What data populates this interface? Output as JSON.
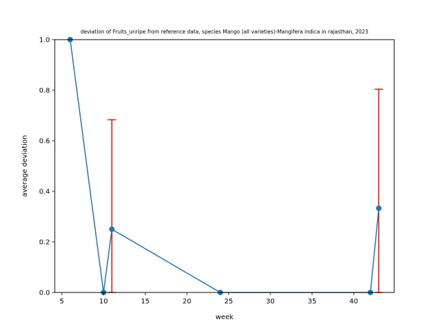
{
  "chart_data": {
    "type": "line",
    "title": "deviation of Fruits_unripe from reference data, species Mango (all varieties)-Mangifera indica in rajasthan, 2023",
    "xlabel": "week",
    "ylabel": "average deviation",
    "xlim": [
      4.15,
      44.85
    ],
    "ylim": [
      0,
      1.0
    ],
    "xticks": [
      5,
      10,
      15,
      20,
      25,
      30,
      35,
      40
    ],
    "yticks": [
      0.0,
      0.2,
      0.4,
      0.6,
      0.8,
      1.0
    ],
    "grid": false,
    "series": [
      {
        "color": "#1f77b4",
        "x": [
          6,
          10,
          11,
          24,
          42,
          43
        ],
        "y": [
          1.0,
          0.0,
          0.25,
          0.0,
          0.0,
          0.333
        ]
      }
    ],
    "error_bars": {
      "color": "#ff0000",
      "x": [
        11,
        43
      ],
      "lower": [
        0.0,
        0.0
      ],
      "upper": [
        0.683,
        0.804
      ]
    }
  }
}
